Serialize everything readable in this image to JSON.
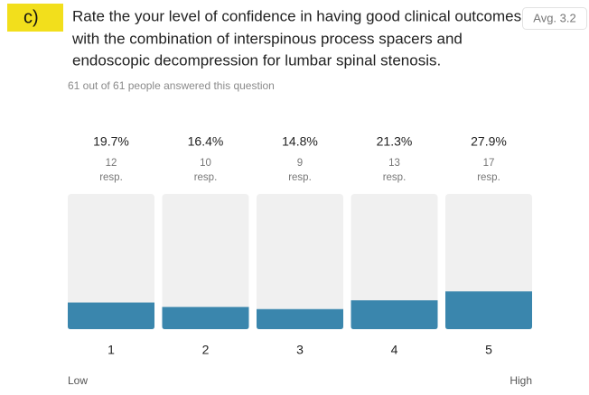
{
  "panel_label": "c)",
  "average": {
    "value": 3.2,
    "label": "Avg. 3.2"
  },
  "chart_data": {
    "type": "bar",
    "title": [
      "Rate the your level of confidence in having good clinical outcomes",
      "with the combination of interspinous process spacers and",
      "endoscopic decompression for lumbar spinal stenosis."
    ],
    "subtitle": "61 out of 61 people answered this question",
    "categories": [
      "1",
      "2",
      "3",
      "4",
      "5"
    ],
    "values": [
      19.7,
      16.4,
      14.8,
      21.3,
      27.9
    ],
    "value_labels": [
      "19.7%",
      "16.4%",
      "14.8%",
      "21.3%",
      "27.9%"
    ],
    "responses": [
      12,
      10,
      9,
      13,
      17
    ],
    "response_unit": "resp.",
    "ylim": [
      0,
      100
    ],
    "color": "#3a86ad",
    "track_color": "#f0f0f0",
    "scale_labels": [
      "Low",
      "High"
    ]
  }
}
